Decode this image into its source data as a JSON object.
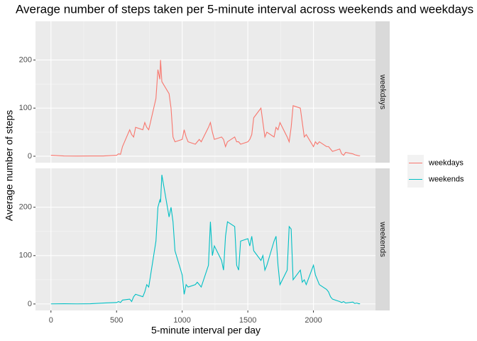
{
  "chart_data": {
    "type": "line",
    "title": "Average number of steps taken per 5-minute interval across weekends and weekdays",
    "xlabel": "5-minute interval per day",
    "ylabel": "Average number of steps",
    "facets": true,
    "grid": true,
    "legend": "right",
    "x": [
      0,
      100,
      200,
      300,
      400,
      500,
      515,
      530,
      545,
      600,
      615,
      630,
      645,
      700,
      715,
      730,
      745,
      800,
      815,
      830,
      835,
      845,
      900,
      915,
      930,
      945,
      1000,
      1015,
      1030,
      1045,
      1100,
      1115,
      1130,
      1145,
      1200,
      1215,
      1230,
      1245,
      1300,
      1315,
      1330,
      1345,
      1400,
      1415,
      1430,
      1445,
      1500,
      1515,
      1530,
      1545,
      1600,
      1615,
      1630,
      1645,
      1700,
      1715,
      1730,
      1745,
      1800,
      1815,
      1830,
      1845,
      1900,
      1915,
      1930,
      1945,
      2000,
      2015,
      2030,
      2045,
      2100,
      2115,
      2130,
      2145,
      2200,
      2215,
      2230,
      2245,
      2300,
      2315,
      2330,
      2345,
      2355
    ],
    "series": [
      {
        "name": "weekdays",
        "color": "#F8766D",
        "values": [
          2,
          0.5,
          0.3,
          0.5,
          0.5,
          2,
          5,
          4,
          20,
          55,
          45,
          40,
          60,
          55,
          70,
          60,
          55,
          120,
          180,
          160,
          200,
          155,
          130,
          100,
          40,
          30,
          35,
          55,
          40,
          30,
          25,
          30,
          35,
          30,
          60,
          70,
          50,
          35,
          40,
          35,
          20,
          30,
          40,
          30,
          30,
          25,
          30,
          35,
          45,
          80,
          100,
          70,
          40,
          50,
          40,
          60,
          55,
          70,
          40,
          30,
          60,
          105,
          100,
          70,
          40,
          45,
          20,
          30,
          25,
          30,
          20,
          20,
          15,
          10,
          15,
          5,
          2,
          8,
          5,
          3,
          2,
          1,
          1
        ]
      },
      {
        "name": "weekends",
        "color": "#00BFC4",
        "values": [
          0.2,
          0.5,
          0.2,
          0.5,
          2,
          3,
          5,
          3,
          8,
          10,
          5,
          15,
          20,
          15,
          25,
          40,
          35,
          130,
          200,
          215,
          210,
          267,
          180,
          200,
          170,
          110,
          60,
          20,
          40,
          35,
          40,
          45,
          40,
          35,
          80,
          170,
          100,
          120,
          90,
          70,
          140,
          170,
          160,
          80,
          70,
          130,
          135,
          120,
          140,
          110,
          90,
          100,
          70,
          80,
          130,
          140,
          80,
          40,
          70,
          160,
          155,
          50,
          70,
          45,
          50,
          40,
          80,
          60,
          50,
          40,
          30,
          25,
          15,
          10,
          5,
          3,
          5,
          2,
          4,
          1,
          2,
          0.5,
          0.5
        ]
      }
    ],
    "xlim": [
      -117.75,
      2472.75
    ],
    "xticks": [
      0,
      500,
      1000,
      1500,
      2000
    ],
    "ylim": [
      -13.4,
      280.4
    ],
    "yticks": [
      0,
      100,
      200
    ]
  }
}
